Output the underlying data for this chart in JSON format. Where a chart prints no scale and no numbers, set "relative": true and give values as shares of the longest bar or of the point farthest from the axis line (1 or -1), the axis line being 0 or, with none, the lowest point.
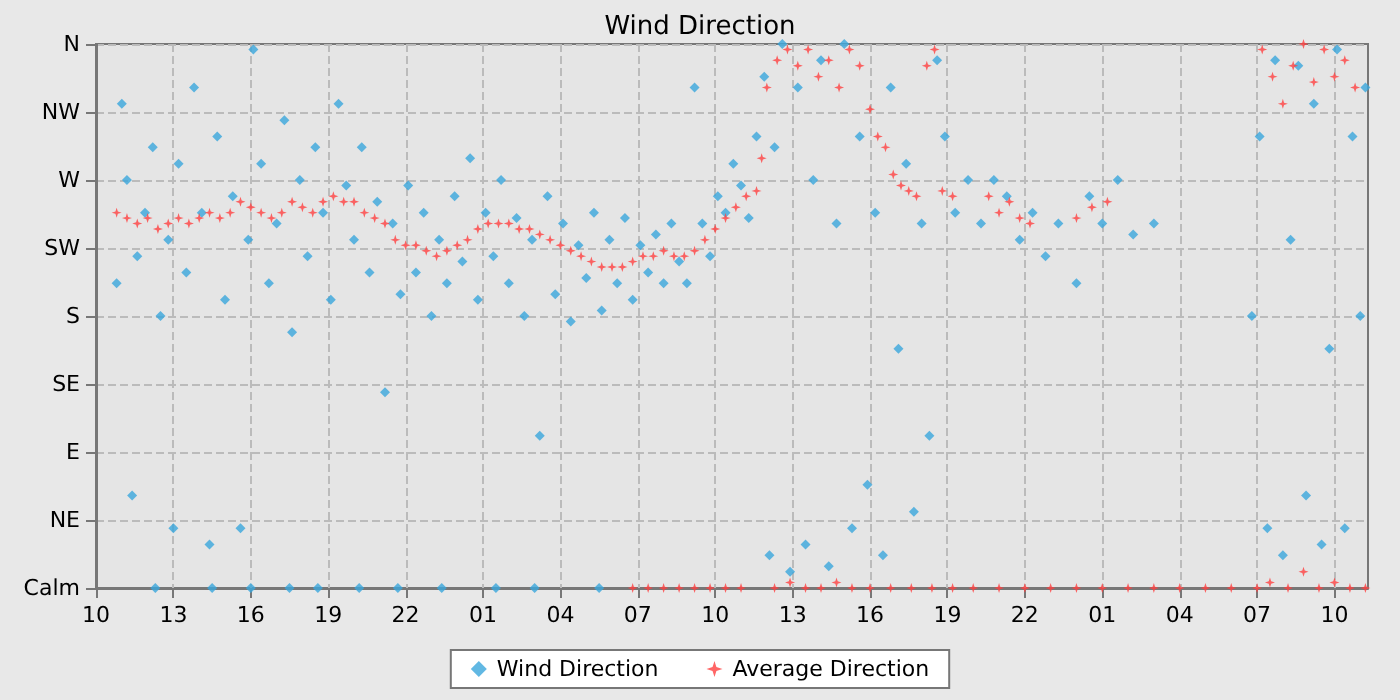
{
  "chart_data": {
    "type": "scatter",
    "title": "Wind Direction",
    "xlim": [
      "--01-01T10:00",
      "--01-03T11:18"
    ],
    "xticks": [
      {
        "value": "--01-01T10:00",
        "label": "10"
      },
      {
        "value": "--01-01T13:00",
        "label": "13"
      },
      {
        "value": "--01-01T16:00",
        "label": "16"
      },
      {
        "value": "--01-01T19:00",
        "label": "19"
      },
      {
        "value": "--01-01T22:00",
        "label": "22"
      },
      {
        "value": "--01-02T01:00",
        "label": "01"
      },
      {
        "value": "--01-02T04:00",
        "label": "04"
      },
      {
        "value": "--01-02T07:00",
        "label": "07"
      },
      {
        "value": "--01-02T10:00",
        "label": "10"
      },
      {
        "value": "--01-02T13:00",
        "label": "13"
      },
      {
        "value": "--01-02T16:00",
        "label": "16"
      },
      {
        "value": "--01-02T19:00",
        "label": "19"
      },
      {
        "value": "--01-02T22:00",
        "label": "22"
      },
      {
        "value": "--01-03T01:00",
        "label": "01"
      },
      {
        "value": "--01-03T04:00",
        "label": "04"
      },
      {
        "value": "--01-03T07:00",
        "label": "07"
      },
      {
        "value": "--01-03T10:00",
        "label": "10"
      }
    ],
    "relative": true,
    "y_categories": [
      "N",
      "NW",
      "W",
      "SW",
      "S",
      "SE",
      "E",
      "NE",
      "Calm"
    ],
    "grid": true,
    "legend": "bottom",
    "series": [
      {
        "name": "Wind Direction",
        "color": "#3aa6dc",
        "marker": "diamond",
        "x": [
          "--01-01T10:48",
          "--01-01T11:00",
          "--01-01T11:12",
          "--01-01T11:24",
          "--01-01T11:36",
          "--01-01T11:54",
          "--01-01T12:12",
          "--01-01T12:30",
          "--01-01T12:48",
          "--01-01T13:00",
          "--01-01T13:12",
          "--01-01T13:30",
          "--01-01T13:48",
          "--01-01T14:06",
          "--01-01T14:24",
          "--01-01T14:42",
          "--01-01T15:00",
          "--01-01T15:18",
          "--01-01T15:36",
          "--01-01T15:54",
          "--01-01T16:06",
          "--01-01T16:24",
          "--01-01T16:42",
          "--01-01T17:00",
          "--01-01T17:18",
          "--01-01T17:36",
          "--01-01T17:54",
          "--01-01T18:12",
          "--01-01T18:30",
          "--01-01T18:48",
          "--01-01T19:06",
          "--01-01T19:24",
          "--01-01T19:42",
          "--01-01T20:00",
          "--01-01T20:18",
          "--01-01T20:36",
          "--01-01T20:54",
          "--01-01T21:12",
          "--01-01T21:30",
          "--01-01T21:48",
          "--01-01T22:06",
          "--01-01T22:24",
          "--01-01T22:42",
          "--01-01T23:00",
          "--01-01T23:18",
          "--01-01T23:36",
          "--01-01T23:54",
          "--01-02T00:12",
          "--01-02T00:30",
          "--01-02T00:48",
          "--01-02T01:06",
          "--01-02T01:24",
          "--01-02T01:42",
          "--01-02T02:00",
          "--01-02T02:18",
          "--01-02T02:36",
          "--01-02T02:54",
          "--01-02T03:12",
          "--01-02T03:30",
          "--01-02T03:48",
          "--01-02T04:06",
          "--01-02T04:24",
          "--01-02T04:42",
          "--01-02T05:00",
          "--01-02T05:18",
          "--01-02T05:36",
          "--01-02T05:54",
          "--01-02T06:12",
          "--01-02T06:30",
          "--01-02T06:48",
          "--01-02T07:06",
          "--01-02T07:24",
          "--01-02T07:42",
          "--01-02T08:00",
          "--01-02T08:18",
          "--01-02T08:36",
          "--01-02T08:54",
          "--01-02T09:12",
          "--01-02T09:30",
          "--01-02T09:48",
          "--01-02T10:06",
          "--01-02T10:24",
          "--01-02T10:42",
          "--01-02T11:00",
          "--01-02T11:18",
          "--01-02T11:36",
          "--01-02T11:54",
          "--01-02T12:06",
          "--01-02T12:18",
          "--01-02T12:36",
          "--01-02T12:54",
          "--01-02T13:12",
          "--01-02T13:30",
          "--01-02T13:48",
          "--01-02T14:06",
          "--01-02T14:24",
          "--01-02T14:42",
          "--01-02T15:00",
          "--01-02T15:18",
          "--01-02T15:36",
          "--01-02T15:54",
          "--01-02T16:12",
          "--01-02T16:30",
          "--01-02T16:48",
          "--01-02T17:06",
          "--01-02T17:24",
          "--01-02T17:42",
          "--01-02T18:00",
          "--01-02T18:18",
          "--01-02T18:36",
          "--01-02T18:54",
          "--01-02T19:18",
          "--01-02T19:48",
          "--01-02T20:18",
          "--01-02T20:48",
          "--01-02T21:18",
          "--01-02T21:48",
          "--01-02T22:18",
          "--01-02T22:48",
          "--01-02T23:18",
          "--01-03T00:00",
          "--01-03T00:30",
          "--01-03T01:00",
          "--01-03T01:36",
          "--01-03T02:12",
          "--01-03T03:00",
          "--01-03T06:48",
          "--01-03T07:06",
          "--01-03T07:24",
          "--01-03T07:42",
          "--01-03T08:00",
          "--01-03T08:18",
          "--01-03T08:36",
          "--01-03T08:54",
          "--01-03T09:12",
          "--01-03T09:30",
          "--01-03T09:48",
          "--01-03T10:06",
          "--01-03T10:24",
          "--01-03T10:42",
          "--01-03T11:00",
          "--01-03T11:12",
          "--01-01T12:18",
          "--01-01T14:30",
          "--01-01T16:00",
          "--01-01T17:30",
          "--01-01T18:36",
          "--01-01T20:12",
          "--01-01T21:42",
          "--01-01T23:24",
          "--01-02T01:30",
          "--01-02T03:00",
          "--01-02T05:30"
        ],
        "values": [
          0.56,
          0.89,
          0.75,
          0.17,
          0.61,
          0.69,
          0.81,
          0.5,
          0.64,
          0.11,
          0.78,
          0.58,
          0.92,
          0.69,
          0.08,
          0.83,
          0.53,
          0.72,
          0.11,
          0.64,
          0.99,
          0.78,
          0.56,
          0.67,
          0.86,
          0.47,
          0.75,
          0.61,
          0.81,
          0.69,
          0.53,
          0.89,
          0.74,
          0.64,
          0.81,
          0.58,
          0.71,
          0.36,
          0.67,
          0.54,
          0.74,
          0.58,
          0.69,
          0.5,
          0.64,
          0.56,
          0.72,
          0.6,
          0.79,
          0.53,
          0.69,
          0.61,
          0.75,
          0.56,
          0.68,
          0.5,
          0.64,
          0.28,
          0.72,
          0.54,
          0.67,
          0.49,
          0.63,
          0.57,
          0.69,
          0.51,
          0.64,
          0.56,
          0.68,
          0.53,
          0.63,
          0.58,
          0.65,
          0.56,
          0.67,
          0.6,
          0.56,
          0.92,
          0.67,
          0.61,
          0.72,
          0.69,
          0.78,
          0.74,
          0.68,
          0.83,
          0.94,
          0.06,
          0.81,
          1,
          0.03,
          0.92,
          0.08,
          0.75,
          0.97,
          0.04,
          0.67,
          1,
          0.11,
          0.83,
          0.19,
          0.69,
          0.06,
          0.92,
          0.44,
          0.78,
          0.14,
          0.67,
          0.28,
          0.97,
          0.83,
          0.69,
          0.75,
          0.67,
          0.75,
          0.72,
          0.64,
          0.69,
          0.61,
          0.67,
          0.56,
          0.72,
          0.67,
          0.75,
          0.65,
          0.67,
          0.5,
          0.83,
          0.11,
          0.97,
          0.06,
          0.64,
          0.96,
          0.17,
          0.89,
          0.08,
          0.44,
          0.99,
          0.11,
          0.83,
          0.5,
          0.92,
          0,
          0,
          0,
          0,
          0,
          0,
          0,
          0,
          0,
          0,
          0
        ]
      },
      {
        "name": "Average Direction",
        "color": "#ff4040",
        "marker": "star",
        "x": [
          "--01-01T10:48",
          "--01-01T11:12",
          "--01-01T11:36",
          "--01-01T12:00",
          "--01-01T12:24",
          "--01-01T12:48",
          "--01-01T13:12",
          "--01-01T13:36",
          "--01-01T14:00",
          "--01-01T14:24",
          "--01-01T14:48",
          "--01-01T15:12",
          "--01-01T15:36",
          "--01-01T16:00",
          "--01-01T16:24",
          "--01-01T16:48",
          "--01-01T17:12",
          "--01-01T17:36",
          "--01-01T18:00",
          "--01-01T18:24",
          "--01-01T18:48",
          "--01-01T19:12",
          "--01-01T19:36",
          "--01-01T20:00",
          "--01-01T20:24",
          "--01-01T20:48",
          "--01-01T21:12",
          "--01-01T21:36",
          "--01-01T22:00",
          "--01-01T22:24",
          "--01-01T22:48",
          "--01-01T23:12",
          "--01-01T23:36",
          "--01-02T00:00",
          "--01-02T00:24",
          "--01-02T00:48",
          "--01-02T01:12",
          "--01-02T01:36",
          "--01-02T02:00",
          "--01-02T02:24",
          "--01-02T02:48",
          "--01-02T03:12",
          "--01-02T03:36",
          "--01-02T04:00",
          "--01-02T04:24",
          "--01-02T04:48",
          "--01-02T05:12",
          "--01-02T05:36",
          "--01-02T06:00",
          "--01-02T06:24",
          "--01-02T06:48",
          "--01-02T07:12",
          "--01-02T07:36",
          "--01-02T08:00",
          "--01-02T08:24",
          "--01-02T08:48",
          "--01-02T09:12",
          "--01-02T09:36",
          "--01-02T10:00",
          "--01-02T10:24",
          "--01-02T10:48",
          "--01-02T11:12",
          "--01-02T11:36",
          "--01-02T11:48",
          "--01-02T12:00",
          "--01-02T12:24",
          "--01-02T12:48",
          "--01-02T13:12",
          "--01-02T13:36",
          "--01-02T14:00",
          "--01-02T14:24",
          "--01-02T14:48",
          "--01-02T15:12",
          "--01-02T15:36",
          "--01-02T16:00",
          "--01-02T16:18",
          "--01-02T16:36",
          "--01-02T16:54",
          "--01-02T17:12",
          "--01-02T17:30",
          "--01-02T17:48",
          "--01-02T18:12",
          "--01-02T18:30",
          "--01-02T18:48",
          "--01-02T19:12",
          "--01-02T20:36",
          "--01-02T21:00",
          "--01-02T21:24",
          "--01-02T21:48",
          "--01-02T22:12",
          "--01-03T00:00",
          "--01-03T00:36",
          "--01-03T01:12",
          "--01-03T07:12",
          "--01-03T07:36",
          "--01-03T08:00",
          "--01-03T08:24",
          "--01-03T08:48",
          "--01-03T09:12",
          "--01-03T09:36",
          "--01-03T10:00",
          "--01-03T10:24",
          "--01-03T10:48",
          "--01-02T06:48",
          "--01-02T07:24",
          "--01-02T08:00",
          "--01-02T08:36",
          "--01-02T09:12",
          "--01-02T09:48",
          "--01-02T10:24",
          "--01-02T11:00",
          "--01-02T12:18",
          "--01-02T12:54",
          "--01-02T13:30",
          "--01-02T14:06",
          "--01-02T14:42",
          "--01-02T15:18",
          "--01-02T16:00",
          "--01-02T16:48",
          "--01-02T17:36",
          "--01-02T18:24",
          "--01-02T19:12",
          "--01-02T20:00",
          "--01-02T21:00",
          "--01-02T22:00",
          "--01-02T23:00",
          "--01-03T00:00",
          "--01-03T01:00",
          "--01-03T02:00",
          "--01-03T03:00",
          "--01-03T04:00",
          "--01-03T05:00",
          "--01-03T06:00",
          "--01-03T07:00",
          "--01-03T07:30",
          "--01-03T08:12",
          "--01-03T08:48",
          "--01-03T09:24",
          "--01-03T10:00",
          "--01-03T10:36",
          "--01-03T11:12"
        ],
        "values": [
          0.69,
          0.68,
          0.67,
          0.68,
          0.66,
          0.67,
          0.68,
          0.67,
          0.68,
          0.69,
          0.68,
          0.69,
          0.71,
          0.7,
          0.69,
          0.68,
          0.69,
          0.71,
          0.7,
          0.69,
          0.71,
          0.72,
          0.71,
          0.71,
          0.69,
          0.68,
          0.67,
          0.64,
          0.63,
          0.63,
          0.62,
          0.61,
          0.62,
          0.63,
          0.64,
          0.66,
          0.67,
          0.67,
          0.67,
          0.66,
          0.66,
          0.65,
          0.64,
          0.63,
          0.62,
          0.61,
          0.6,
          0.59,
          0.59,
          0.59,
          0.6,
          0.61,
          0.61,
          0.62,
          0.61,
          0.61,
          0.62,
          0.64,
          0.66,
          0.68,
          0.7,
          0.72,
          0.73,
          0.79,
          0.92,
          0.97,
          0.99,
          0.96,
          0.99,
          0.94,
          0.97,
          0.92,
          0.99,
          0.96,
          0.88,
          0.83,
          0.81,
          0.76,
          0.74,
          0.73,
          0.72,
          0.96,
          0.99,
          0.73,
          0.72,
          0.72,
          0.69,
          0.71,
          0.68,
          0.67,
          0.68,
          0.7,
          0.71,
          0.99,
          0.94,
          0.89,
          0.96,
          1,
          0.93,
          0.99,
          0.94,
          0.97,
          0.92,
          0,
          0,
          0,
          0,
          0,
          0,
          0,
          0,
          0,
          0.01,
          0,
          0,
          0.01,
          0,
          0,
          0,
          0,
          0,
          0,
          0,
          0,
          0,
          0,
          0,
          0,
          0,
          0,
          0,
          0,
          0,
          0,
          0.01,
          0,
          0.03,
          0,
          0.01,
          0,
          0
        ]
      }
    ]
  }
}
